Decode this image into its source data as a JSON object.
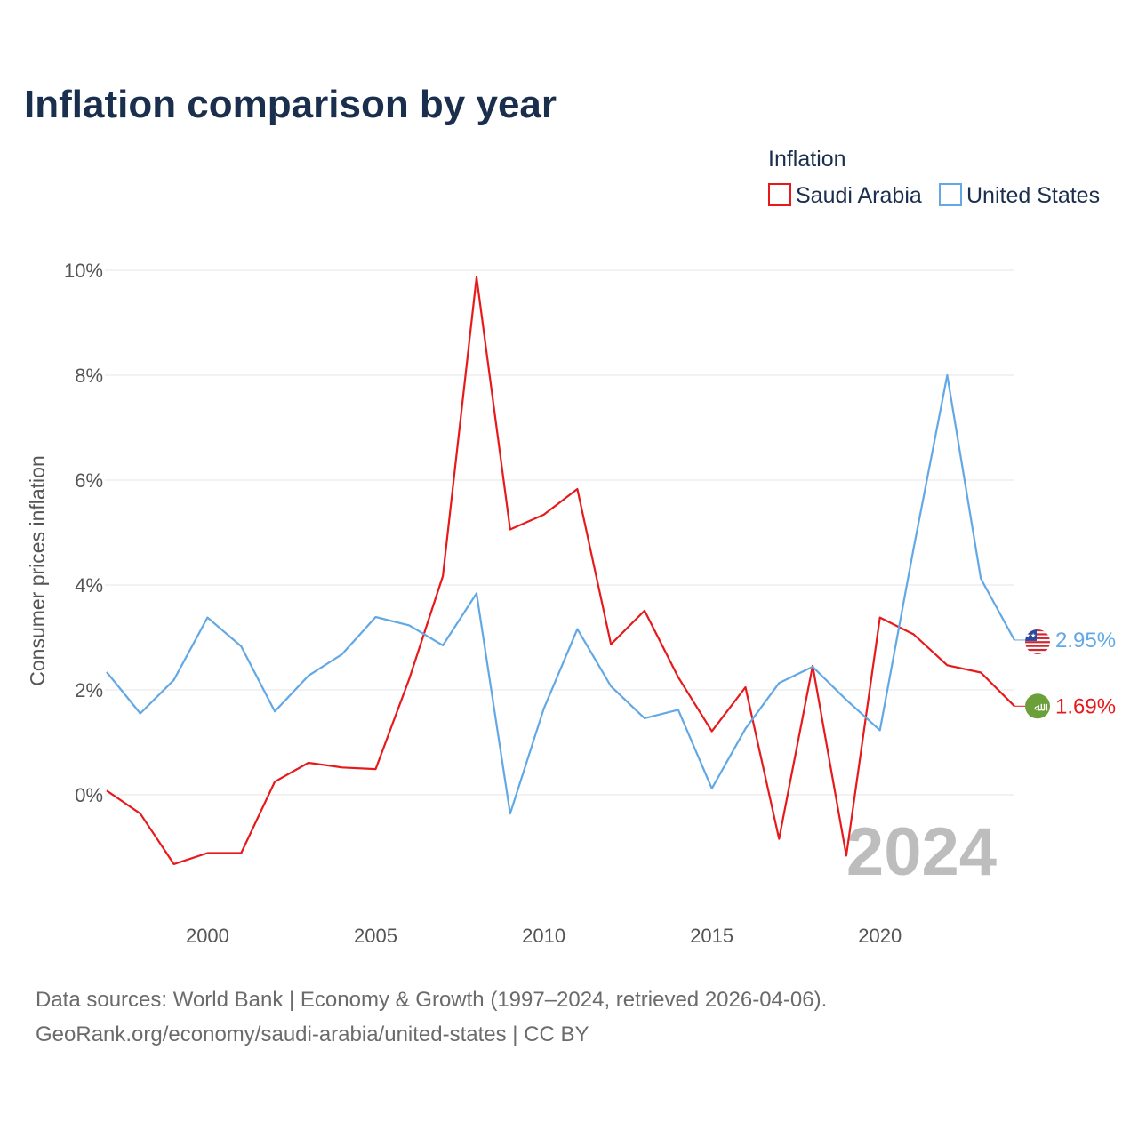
{
  "colors": {
    "saudi": "#e8191a",
    "us": "#62a8e5",
    "title": "#1a2e4e",
    "grid": "#e6e6e6",
    "tick": "#555555",
    "watermark": "#bdbdbd"
  },
  "chart_data": {
    "type": "line",
    "title": "Inflation comparison by year",
    "legend_title": "Inflation",
    "legend_position": "top-right",
    "ylabel": "Consumer prices inflation",
    "xlabel": "",
    "xlim": [
      1997,
      2024
    ],
    "ylim": [
      -2,
      10
    ],
    "yticks": [
      0,
      2,
      4,
      6,
      8,
      10
    ],
    "ytick_labels": [
      "0%",
      "2%",
      "4%",
      "6%",
      "8%",
      "10%"
    ],
    "xticks": [
      2000,
      2005,
      2010,
      2015,
      2020
    ],
    "xtick_labels": [
      "2000",
      "2005",
      "2010",
      "2015",
      "2020"
    ],
    "grid": true,
    "watermark_year": "2024",
    "x": [
      1997,
      1998,
      1999,
      2000,
      2001,
      2002,
      2003,
      2004,
      2005,
      2006,
      2007,
      2008,
      2009,
      2010,
      2011,
      2012,
      2013,
      2014,
      2015,
      2016,
      2017,
      2018,
      2019,
      2020,
      2021,
      2022,
      2023,
      2024
    ],
    "series": [
      {
        "name": "Saudi Arabia",
        "key": "saudi",
        "end_label": "1.69%",
        "flag_glyph": "ﷲ",
        "values": [
          0.08,
          -0.36,
          -1.32,
          -1.11,
          -1.11,
          0.25,
          0.61,
          0.52,
          0.49,
          2.21,
          4.17,
          9.87,
          5.06,
          5.34,
          5.83,
          2.87,
          3.51,
          2.24,
          1.21,
          2.05,
          -0.84,
          2.46,
          -1.16,
          3.38,
          3.06,
          2.47,
          2.33,
          1.69
        ]
      },
      {
        "name": "United States",
        "key": "us",
        "end_label": "2.95%",
        "values": [
          2.34,
          1.55,
          2.19,
          3.38,
          2.83,
          1.59,
          2.27,
          2.68,
          3.39,
          3.23,
          2.85,
          3.84,
          -0.36,
          1.64,
          3.16,
          2.07,
          1.46,
          1.62,
          0.12,
          1.26,
          2.13,
          2.44,
          1.81,
          1.23,
          4.7,
          8.0,
          4.12,
          2.95
        ]
      }
    ]
  },
  "sources": {
    "line1": "Data sources: World Bank | Economy & Growth (1997–2024, retrieved 2026-04-06).",
    "line2": "GeoRank.org/economy/saudi-arabia/united-states | CC BY"
  }
}
